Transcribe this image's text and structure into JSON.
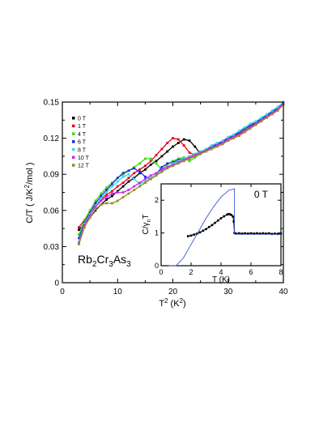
{
  "chart_data": [
    {
      "type": "line",
      "title": "",
      "xlabel": "T² (K²)",
      "xlabel_base": "T",
      "xlabel_sup": "2",
      "xlabel_unit_pre": " (K",
      "xlabel_unit_sup": "2",
      "xlabel_unit_post": ")",
      "ylabel": "C/T ( J/K²/mol )",
      "ylabel_pre": "C/T ( J/K",
      "ylabel_sup": "2",
      "ylabel_post": "/mol )",
      "xlim": [
        0,
        40
      ],
      "ylim": [
        0,
        0.15
      ],
      "xticks": [
        0,
        10,
        20,
        30,
        40
      ],
      "yticks": [
        0,
        0.03,
        0.06,
        0.09,
        0.12,
        0.15
      ],
      "ytick_labels": [
        "0",
        "0.03",
        "0.06",
        "0.09",
        "0.12",
        "0.15"
      ],
      "grid": false,
      "legend_position": "top-left",
      "compound_parts": [
        {
          "text": "Rb",
          "sub": false
        },
        {
          "text": "2",
          "sub": true
        },
        {
          "text": "Cr",
          "sub": false
        },
        {
          "text": "3",
          "sub": true
        },
        {
          "text": "As",
          "sub": false
        },
        {
          "text": "3",
          "sub": true
        }
      ],
      "series": [
        {
          "name": "0 T",
          "color": "#000000",
          "x": [
            3,
            4,
            5,
            6,
            7,
            8,
            9,
            10,
            11,
            12,
            13,
            14,
            15,
            16,
            17,
            18,
            19,
            20,
            21,
            22,
            23,
            24,
            25,
            26,
            27,
            28,
            29,
            30,
            31,
            32,
            33,
            34,
            35,
            36,
            37,
            38,
            39,
            40
          ],
          "y": [
            0.044,
            0.049,
            0.054,
            0.06,
            0.065,
            0.069,
            0.072,
            0.076,
            0.08,
            0.084,
            0.087,
            0.091,
            0.094,
            0.098,
            0.101,
            0.105,
            0.109,
            0.113,
            0.116,
            0.119,
            0.118,
            0.113,
            0.107,
            0.11,
            0.113,
            0.115,
            0.117,
            0.12,
            0.122,
            0.124,
            0.127,
            0.13,
            0.132,
            0.135,
            0.138,
            0.141,
            0.144,
            0.149
          ]
        },
        {
          "name": "1 T",
          "color": "#e8001c",
          "x": [
            3,
            4,
            5,
            6,
            7,
            8,
            9,
            10,
            11,
            12,
            13,
            14,
            15,
            16,
            17,
            18,
            19,
            20,
            21,
            22,
            23,
            24,
            25,
            26,
            27,
            28,
            29,
            30,
            31,
            32,
            33,
            34,
            35,
            36,
            37,
            38,
            39,
            40
          ],
          "y": [
            0.046,
            0.052,
            0.058,
            0.064,
            0.069,
            0.073,
            0.076,
            0.08,
            0.083,
            0.087,
            0.091,
            0.094,
            0.097,
            0.101,
            0.106,
            0.111,
            0.116,
            0.12,
            0.119,
            0.114,
            0.108,
            0.106,
            0.108,
            0.11,
            0.112,
            0.114,
            0.117,
            0.119,
            0.121,
            0.124,
            0.127,
            0.131,
            0.133,
            0.136,
            0.139,
            0.142,
            0.145,
            0.15
          ]
        },
        {
          "name": "4 T",
          "color": "#3cdc14",
          "x": [
            3,
            4,
            5,
            6,
            7,
            8,
            9,
            10,
            11,
            12,
            13,
            14,
            15,
            16,
            17,
            18,
            19,
            20,
            21,
            22,
            23,
            24,
            25,
            26,
            27,
            28,
            29,
            30,
            31,
            32,
            33,
            34,
            35,
            36,
            37,
            38,
            39,
            40
          ],
          "y": [
            0.04,
            0.052,
            0.06,
            0.068,
            0.074,
            0.079,
            0.083,
            0.087,
            0.09,
            0.093,
            0.096,
            0.099,
            0.103,
            0.103,
            0.099,
            0.094,
            0.098,
            0.101,
            0.103,
            0.104,
            0.101,
            0.104,
            0.107,
            0.11,
            0.112,
            0.114,
            0.117,
            0.119,
            0.122,
            0.125,
            0.127,
            0.13,
            0.133,
            0.135,
            0.138,
            0.141,
            0.145,
            0.15
          ]
        },
        {
          "name": "6 T",
          "color": "#1a2be8",
          "x": [
            3,
            4,
            5,
            6,
            7,
            8,
            9,
            10,
            11,
            12,
            13,
            14,
            15,
            16,
            17,
            18,
            19,
            20,
            21,
            22,
            23,
            24,
            25,
            26,
            27,
            28,
            29,
            30,
            31,
            32,
            33,
            34,
            35,
            36,
            37,
            38,
            39,
            40
          ],
          "y": [
            0.037,
            0.05,
            0.058,
            0.066,
            0.072,
            0.077,
            0.082,
            0.087,
            0.091,
            0.093,
            0.095,
            0.092,
            0.088,
            0.086,
            0.09,
            0.096,
            0.099,
            0.1,
            0.102,
            0.103,
            0.104,
            0.106,
            0.108,
            0.11,
            0.113,
            0.115,
            0.117,
            0.12,
            0.122,
            0.125,
            0.128,
            0.13,
            0.133,
            0.136,
            0.139,
            0.142,
            0.145,
            0.15
          ]
        },
        {
          "name": "8 T",
          "color": "#40d8e0",
          "x": [
            3,
            4,
            5,
            6,
            7,
            8,
            9,
            10,
            11,
            12,
            13,
            14,
            15,
            16,
            17,
            18,
            19,
            20,
            21,
            22,
            23,
            24,
            25,
            26,
            27,
            28,
            29,
            30,
            31,
            32,
            33,
            34,
            35,
            36,
            37,
            38,
            39,
            40
          ],
          "y": [
            0.034,
            0.049,
            0.057,
            0.064,
            0.07,
            0.075,
            0.08,
            0.084,
            0.088,
            0.09,
            0.086,
            0.082,
            0.084,
            0.087,
            0.09,
            0.093,
            0.096,
            0.099,
            0.101,
            0.103,
            0.105,
            0.107,
            0.109,
            0.111,
            0.114,
            0.116,
            0.118,
            0.121,
            0.123,
            0.126,
            0.129,
            0.132,
            0.134,
            0.137,
            0.14,
            0.143,
            0.146,
            0.15
          ]
        },
        {
          "name": "10 T",
          "color": "#cf28e8",
          "x": [
            3,
            4,
            5,
            6,
            7,
            8,
            9,
            10,
            11,
            12,
            13,
            14,
            15,
            16,
            17,
            18,
            19,
            20,
            21,
            22,
            23,
            24,
            25,
            26,
            27,
            28,
            29,
            30,
            31,
            32,
            33,
            34,
            35,
            36,
            37,
            38,
            39,
            40
          ],
          "y": [
            0.033,
            0.048,
            0.056,
            0.063,
            0.068,
            0.071,
            0.074,
            0.075,
            0.075,
            0.077,
            0.08,
            0.083,
            0.086,
            0.089,
            0.091,
            0.094,
            0.096,
            0.098,
            0.1,
            0.102,
            0.104,
            0.106,
            0.108,
            0.11,
            0.112,
            0.114,
            0.116,
            0.119,
            0.121,
            0.123,
            0.126,
            0.129,
            0.132,
            0.135,
            0.138,
            0.141,
            0.144,
            0.149
          ]
        },
        {
          "name": "12 T",
          "color": "#9a8a28",
          "x": [
            3,
            4,
            5,
            6,
            7,
            8,
            9,
            10,
            11,
            12,
            13,
            14,
            15,
            16,
            17,
            18,
            19,
            20,
            21,
            22,
            23,
            24,
            25,
            26,
            27,
            28,
            29,
            30,
            31,
            32,
            33,
            34,
            35,
            36,
            37,
            38,
            39,
            40
          ],
          "y": [
            0.032,
            0.046,
            0.054,
            0.061,
            0.065,
            0.066,
            0.066,
            0.068,
            0.071,
            0.074,
            0.077,
            0.08,
            0.083,
            0.086,
            0.089,
            0.092,
            0.095,
            0.097,
            0.099,
            0.101,
            0.103,
            0.105,
            0.107,
            0.109,
            0.111,
            0.113,
            0.115,
            0.118,
            0.12,
            0.122,
            0.125,
            0.128,
            0.131,
            0.134,
            0.137,
            0.14,
            0.143,
            0.148
          ]
        }
      ]
    },
    {
      "type": "line",
      "title": "",
      "annotation": "0 T",
      "xlabel": "T (K)",
      "ylabel": "C/γnT",
      "ylabel_base": "C/γ",
      "ylabel_sub": "n",
      "ylabel_post": "T",
      "xlim": [
        0,
        8
      ],
      "ylim": [
        0,
        2.5
      ],
      "xticks": [
        0,
        2,
        4,
        6,
        8
      ],
      "yticks": [
        0,
        1,
        2
      ],
      "grid": false,
      "series": [
        {
          "color": "#000000",
          "x": [
            1.8,
            2.0,
            2.2,
            2.4,
            2.6,
            2.8,
            3.0,
            3.2,
            3.4,
            3.6,
            3.8,
            4.0,
            4.2,
            4.4,
            4.5,
            4.6,
            4.7,
            4.8,
            4.85,
            4.9,
            5.0,
            5.2,
            5.4,
            5.6,
            5.8,
            6.0,
            6.2,
            6.4,
            6.6,
            6.8,
            7.0,
            7.2,
            7.4,
            7.6,
            7.8,
            8.0
          ],
          "y": [
            0.9,
            0.92,
            0.95,
            0.98,
            1.02,
            1.07,
            1.12,
            1.18,
            1.24,
            1.31,
            1.38,
            1.45,
            1.51,
            1.56,
            1.58,
            1.57,
            1.55,
            1.5,
            1.35,
            1.0,
            0.98,
            0.99,
            0.98,
            0.99,
            0.98,
            0.99,
            0.98,
            0.99,
            0.98,
            0.99,
            0.98,
            0.99,
            0.97,
            0.98,
            0.97,
            0.98
          ]
        },
        {
          "color": "#3a56c8",
          "x": [
            0.5,
            1.0,
            1.5,
            2.0,
            2.5,
            3.0,
            3.5,
            4.0,
            4.5,
            4.9,
            4.9,
            5.2,
            5.6,
            6.0,
            6.5,
            7.0,
            7.5,
            8.0
          ],
          "y": [
            0.0,
            0.0,
            0.25,
            0.65,
            1.05,
            1.45,
            1.8,
            2.1,
            2.3,
            2.35,
            0.97,
            0.96,
            0.96,
            0.96,
            0.96,
            0.96,
            0.96,
            0.96
          ]
        }
      ]
    }
  ]
}
